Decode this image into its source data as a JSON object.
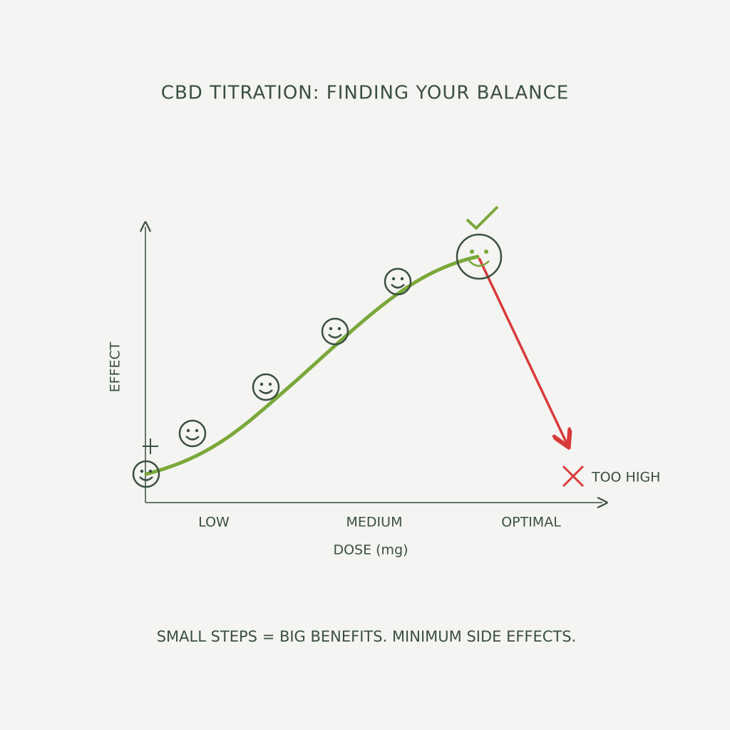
{
  "header": {
    "title": "CBD TITRATION: FINDING YOUR BALANCE"
  },
  "axes": {
    "y_label": "EFFECT",
    "x_label": "DOSE (mg)",
    "x_categories": [
      "LOW",
      "MEDIUM",
      "OPTIMAL"
    ]
  },
  "annotation": "TOO HIGH",
  "footer": "SMALL STEPS = BIG BENEFITS. MINIMUM SIDE EFFECTS."
}
